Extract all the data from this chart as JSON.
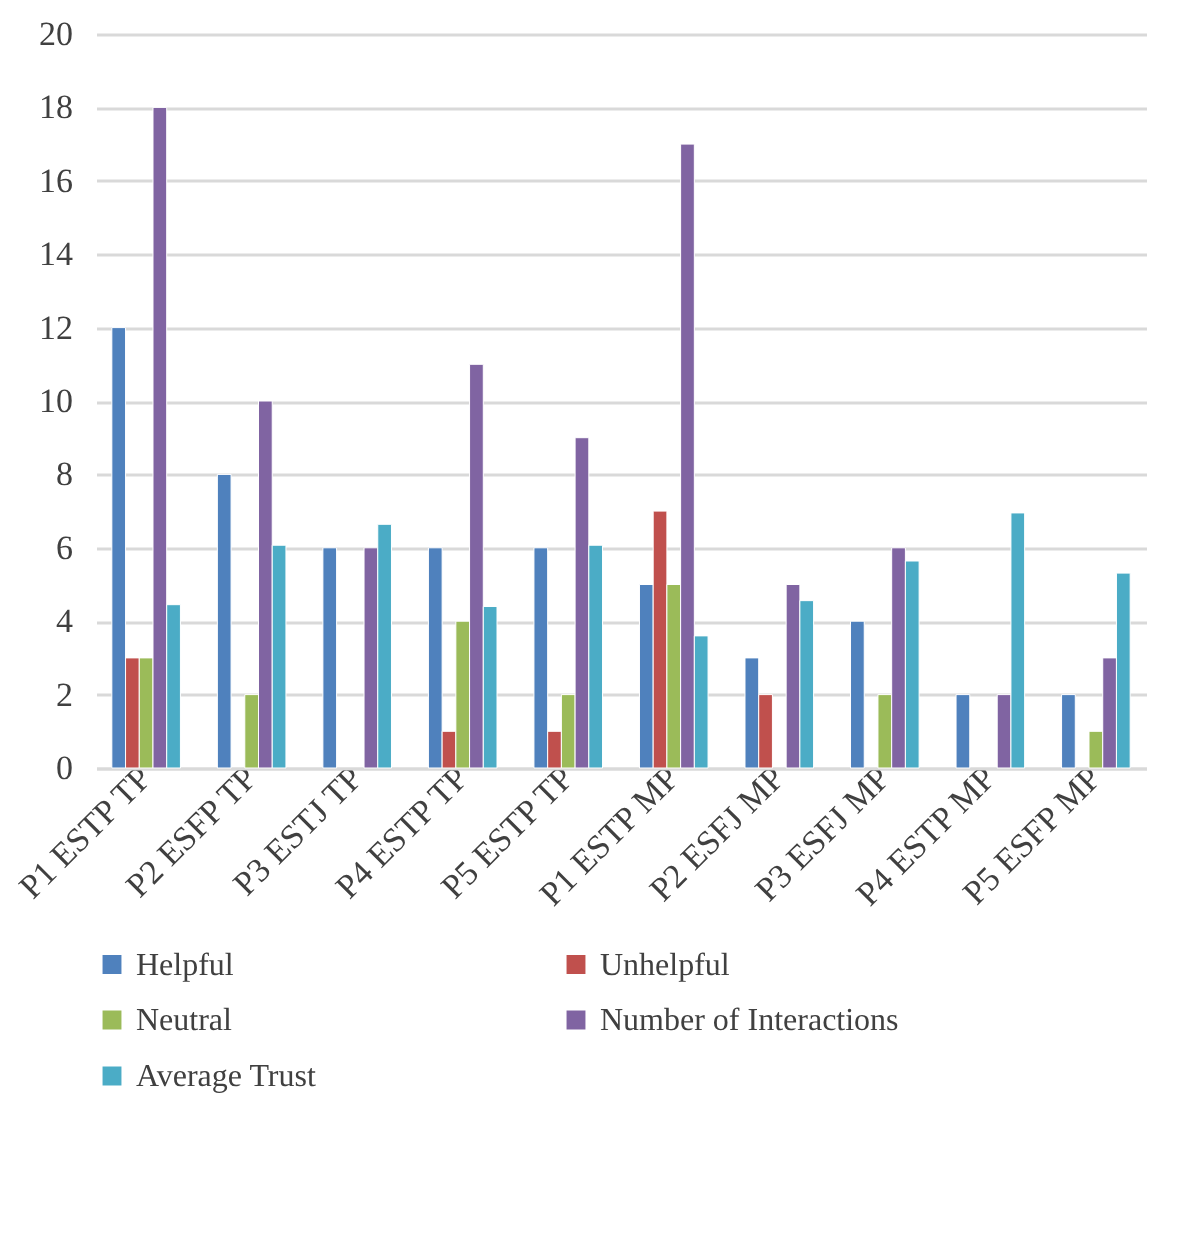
{
  "chart_data": {
    "type": "bar",
    "categories": [
      "P1 ESTP TP",
      "P2 ESFP TP",
      "P3 ESTJ TP",
      "P4 ESTP TP",
      "P5 ESTP TP",
      "P1 ESTP MP",
      "P2 ESFJ MP",
      "P3 ESFJ MP",
      "P4 ESTP MP",
      "P5 ESFP MP"
    ],
    "series": [
      {
        "name": "Helpful",
        "color": "#4f81bd",
        "values": [
          12,
          8,
          6,
          6,
          6,
          5,
          3,
          4,
          2,
          2
        ]
      },
      {
        "name": "Unhelpful",
        "color": "#c0504d",
        "values": [
          3,
          null,
          null,
          1,
          1,
          7,
          2,
          null,
          null,
          null
        ]
      },
      {
        "name": "Neutral",
        "color": "#9bbb59",
        "values": [
          3,
          2,
          null,
          4,
          2,
          5,
          null,
          2,
          null,
          1
        ]
      },
      {
        "name": "Number of Interactions",
        "color": "#8064a2",
        "values": [
          18,
          10,
          6,
          11,
          9,
          17,
          5,
          6,
          2,
          3
        ]
      },
      {
        "name": "Average Trust",
        "color": "#4bacc6",
        "values": [
          4.45,
          6.07,
          6.64,
          4.4,
          6.07,
          3.6,
          4.56,
          5.64,
          6.95,
          5.31
        ]
      }
    ],
    "ylim": [
      0,
      20
    ],
    "yticks": [
      0,
      2,
      4,
      6,
      8,
      10,
      12,
      14,
      16,
      18,
      20
    ],
    "grid": "y",
    "legend": "bottom"
  }
}
